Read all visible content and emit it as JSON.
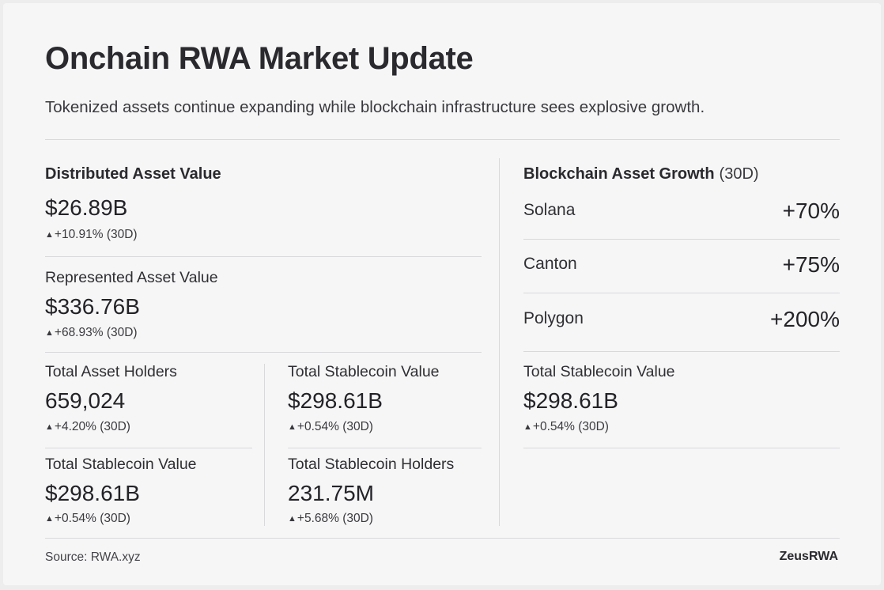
{
  "header": {
    "title": "Onchain RWA Market Update",
    "subtitle": "Tokenized assets continue expanding while blockchain infrastructure sees explosive growth."
  },
  "arrow_icon": "triangle-up-icon",
  "left": {
    "distributed": {
      "label": "Distributed Asset Value",
      "value": "$26.89B",
      "change": "+10.91% (30D)"
    },
    "represented": {
      "label": "Represented Asset Value",
      "value": "$336.76B",
      "change": "+68.93% (30D)"
    },
    "holders": {
      "label": "Total Asset Holders",
      "value": "659,024",
      "change": "+4.20% (30D)"
    },
    "stablecoin_value_a": {
      "label": "Total Stablecoin Value",
      "value": "$298.61B",
      "change": "+0.54% (30D)"
    },
    "stablecoin_value_b": {
      "label": "Total Stablecoin Value",
      "value": "$298.61B",
      "change": "+0.54% (30D)"
    },
    "stablecoin_holders": {
      "label": "Total Stablecoin Holders",
      "value": "231.75M",
      "change": "+5.68% (30D)"
    }
  },
  "right": {
    "growth_title": "Blockchain Asset Growth",
    "growth_period": "(30D)",
    "chains": [
      {
        "name": "Solana",
        "pct": "+70%"
      },
      {
        "name": "Canton",
        "pct": "+75%"
      },
      {
        "name": "Polygon",
        "pct": "+200%"
      }
    ],
    "stablecoin": {
      "label": "Total Stablecoin Value",
      "value": "$298.61B",
      "change": "+0.54% (30D)"
    }
  },
  "footer": {
    "source": "Source: RWA.xyz",
    "brand": "ZeusRWA"
  }
}
